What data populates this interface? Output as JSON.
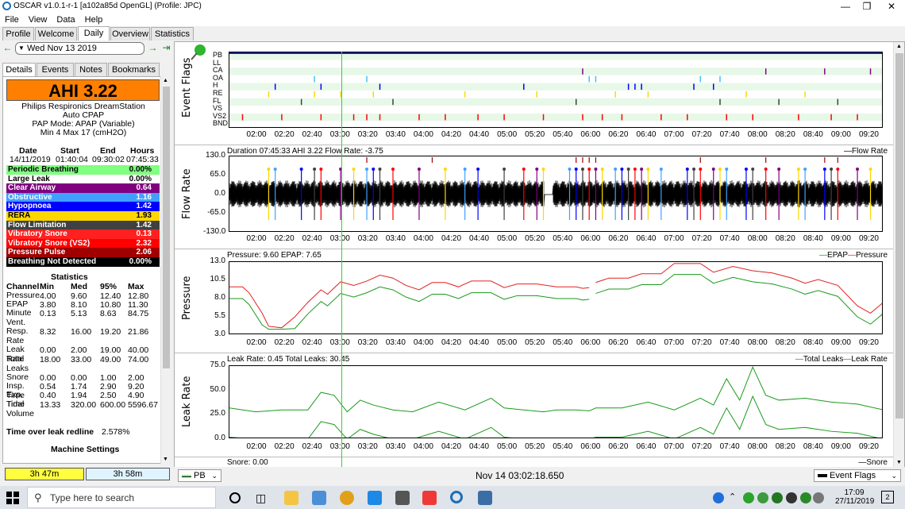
{
  "window": {
    "title": "OSCAR v1.0.1-r-1 [a102a85d OpenGL] (Profile: JPC)"
  },
  "menu": [
    "File",
    "View",
    "Data",
    "Help"
  ],
  "tabs": [
    "Profile",
    "Welcome",
    "Daily",
    "Overview",
    "Statistics"
  ],
  "date": {
    "label": "Wed Nov 13 2019"
  },
  "subtabs": [
    "Details",
    "Events",
    "Notes",
    "Bookmarks"
  ],
  "ahi": {
    "label": "AHI 3.22"
  },
  "machine": {
    "line1": "Philips Respironics DreamStation",
    "line2": "Auto CPAP",
    "line3": "PAP Mode: APAP (Variable)",
    "line4": "Min 4 Max 17 (cmH2O)"
  },
  "summary": {
    "headers": [
      "Date",
      "Start",
      "End",
      "Hours"
    ],
    "values": [
      "14/11/2019",
      "01:40:04",
      "09:30:02",
      "07:45:33"
    ]
  },
  "events": [
    {
      "name": "Periodic Breathing",
      "value": "0.00%",
      "bg": "#80ff80",
      "fg": "#000000"
    },
    {
      "name": "Large Leak",
      "value": "0.00%",
      "bg": "#ffffff",
      "fg": "#000000"
    },
    {
      "name": "Clear Airway",
      "value": "0.64",
      "bg": "#800080",
      "fg": "#ffffff"
    },
    {
      "name": "Obstructive",
      "value": "1.16",
      "bg": "#40a0ff",
      "fg": "#ffffff"
    },
    {
      "name": "Hypopnoea",
      "value": "1.42",
      "bg": "#0000ff",
      "fg": "#ffffff"
    },
    {
      "name": "RERA",
      "value": "1.93",
      "bg": "#ffd700",
      "fg": "#000000"
    },
    {
      "name": "Flow Limitation",
      "value": "1.42",
      "bg": "#404040",
      "fg": "#ffffff"
    },
    {
      "name": "Vibratory Snore",
      "value": "0.13",
      "bg": "#ff2020",
      "fg": "#ffffff"
    },
    {
      "name": "Vibratory Snore (VS2)",
      "value": "2.32",
      "bg": "#ff0000",
      "fg": "#ffffff"
    },
    {
      "name": "Pressure Pulse",
      "value": "2.06",
      "bg": "#a00000",
      "fg": "#ffffff"
    },
    {
      "name": "Breathing Not Detected",
      "value": "0.00%",
      "bg": "#000000",
      "fg": "#ffffff"
    }
  ],
  "statistics": {
    "title": "Statistics",
    "headers": [
      "Channel",
      "Min",
      "Med",
      "95%",
      "Max"
    ],
    "rows": [
      [
        "Pressure",
        "4.00",
        "9.60",
        "12.40",
        "12.80"
      ],
      [
        "EPAP",
        "3.80",
        "8.10",
        "10.80",
        "11.30"
      ],
      [
        "Minute Vent.",
        "0.13",
        "5.13",
        "8.63",
        "84.75"
      ],
      [
        "Resp. Rate",
        "8.32",
        "16.00",
        "19.20",
        "21.86"
      ],
      [
        "Leak Rate",
        "0.00",
        "2.00",
        "19.00",
        "40.00"
      ],
      [
        "Total Leaks",
        "18.00",
        "33.00",
        "49.00",
        "74.00"
      ],
      [
        "Snore",
        "0.00",
        "0.00",
        "1.00",
        "2.00"
      ],
      [
        "Insp. Time",
        "0.54",
        "1.74",
        "2.90",
        "9.20"
      ],
      [
        "Exp. Time",
        "0.40",
        "1.94",
        "2.50",
        "4.90"
      ],
      [
        "Tidal Volume",
        "13.33",
        "320.00",
        "600.00",
        "5596.67"
      ]
    ]
  },
  "leak_redline": {
    "label": "Time over leak redline",
    "value": "2.578%"
  },
  "machine_settings": {
    "label": "Machine Settings"
  },
  "durations": [
    "3h 47m",
    "3h 58m"
  ],
  "charts": {
    "time_ticks": [
      "02:00",
      "02:20",
      "02:40",
      "03:00",
      "03:20",
      "03:40",
      "04:00",
      "04:20",
      "04:40",
      "05:00",
      "05:20",
      "05:40",
      "06:00",
      "06:20",
      "06:40",
      "07:00",
      "07:20",
      "07:40",
      "08:00",
      "08:20",
      "08:40",
      "09:00",
      "09:20"
    ],
    "event_flags": {
      "ylabel": "Event Flags",
      "rows": [
        "PB",
        "LL",
        "CA",
        "OA",
        "H",
        "RE",
        "FL",
        "VS",
        "VS2",
        "BND"
      ]
    },
    "flow": {
      "ylabel": "Flow Rate",
      "caption": "Duration 07:45:33 AHI 3.22 Flow Rate: -3.75",
      "legend": "Flow Rate",
      "yticks": [
        "130.0",
        "65.0",
        "0.0",
        "-65.0",
        "-130.0"
      ]
    },
    "pressure": {
      "ylabel": "Pressure",
      "caption": "Pressure: 9.60 EPAP: 7.65",
      "legend_a": "EPAP",
      "legend_b": "Pressure",
      "yticks": [
        "13.0",
        "10.5",
        "8.0",
        "5.5",
        "3.0"
      ]
    },
    "leak": {
      "ylabel": "Leak Rate",
      "caption": "Leak Rate: 0.45 Total Leaks: 30.45",
      "legend_a": "Total Leaks",
      "legend_b": "Leak Rate",
      "yticks": [
        "75.0",
        "50.0",
        "25.0",
        "0.0"
      ]
    },
    "snore": {
      "caption": "Snore: 0.00",
      "legend": "Snore"
    }
  },
  "bottombar": {
    "left_select": "PB",
    "current_time": "Nov 14 03:02:18.650",
    "right_select": "Event Flags"
  },
  "taskbar": {
    "search_placeholder": "Type here to search",
    "time": "17:09",
    "date": "27/11/2019"
  }
}
